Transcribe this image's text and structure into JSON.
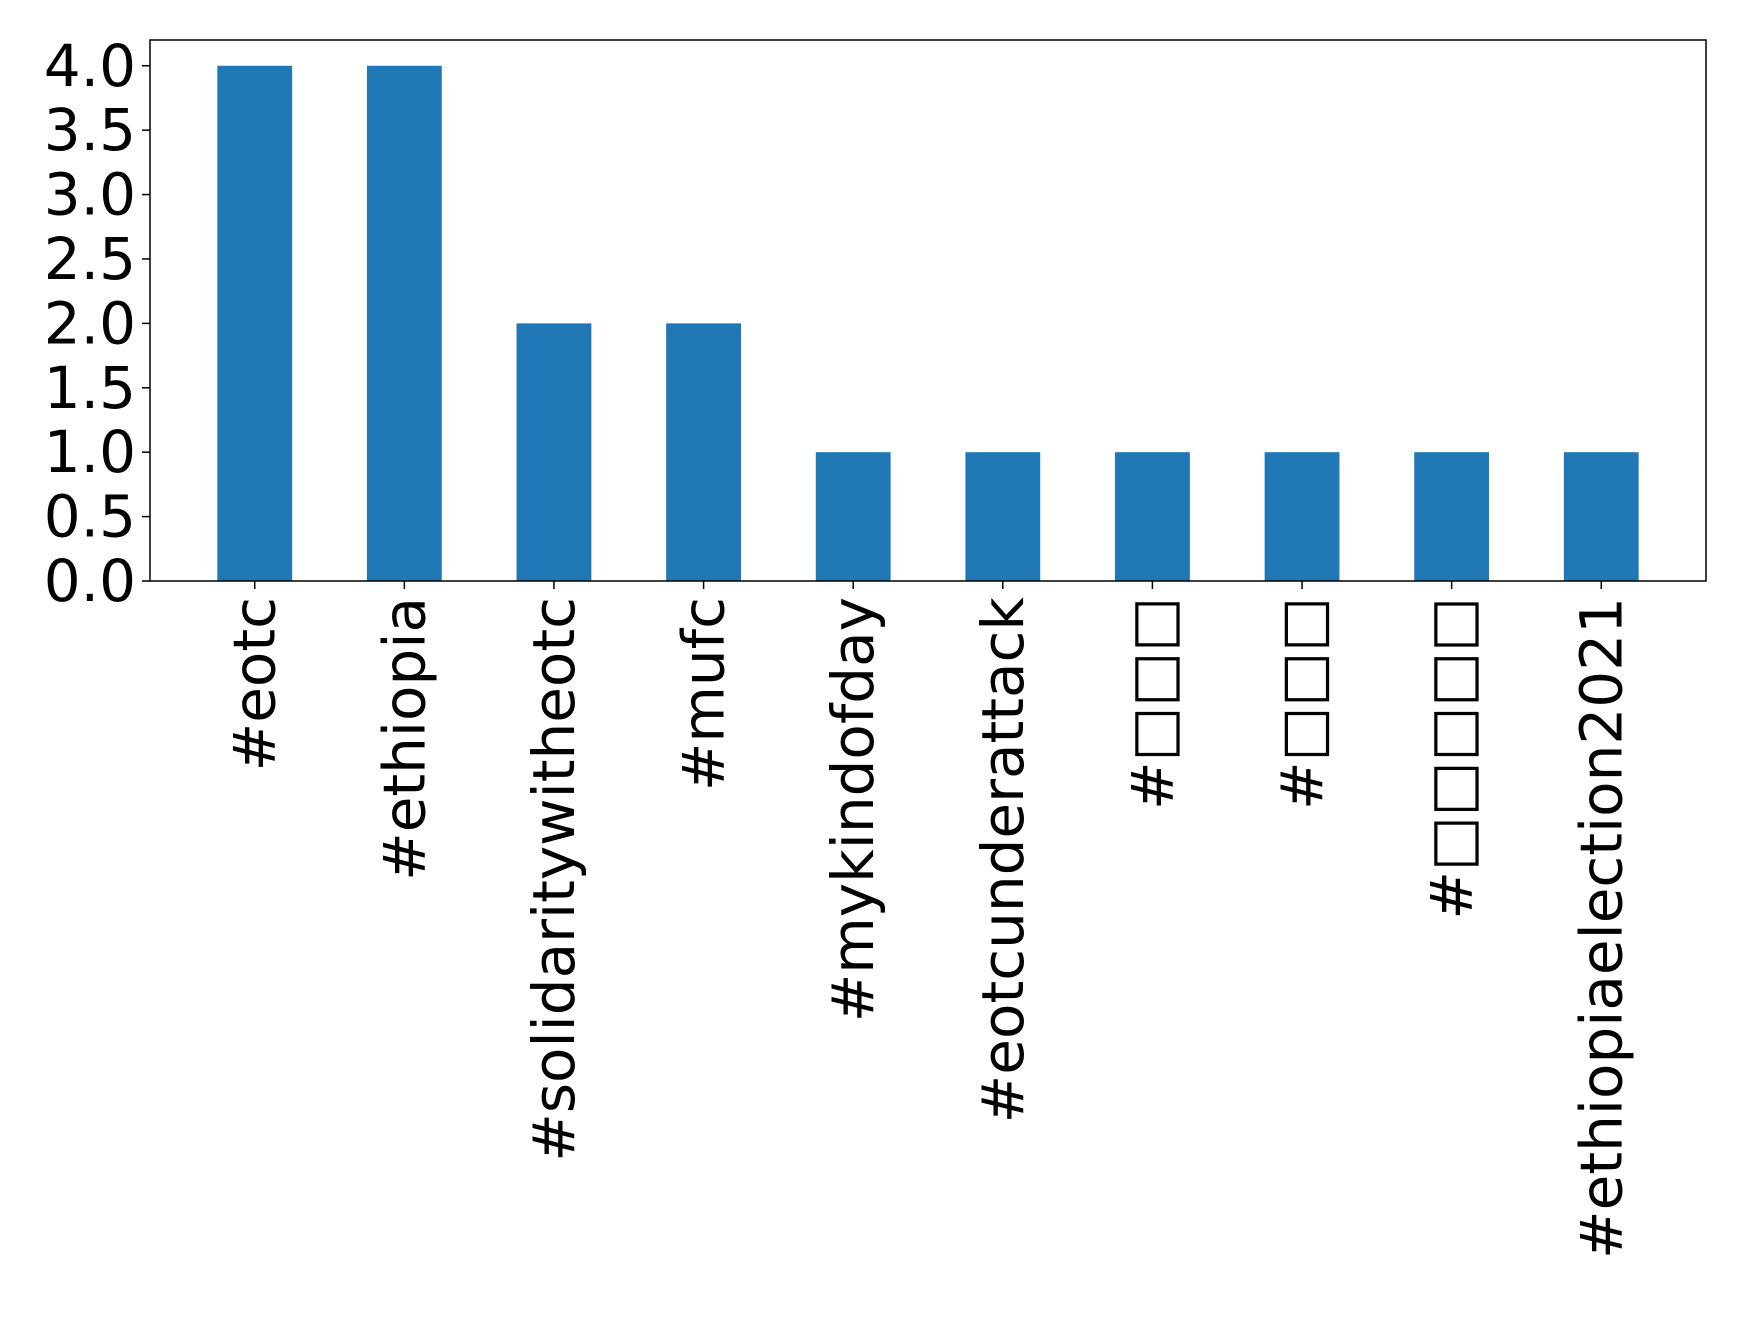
{
  "chart_data": {
    "type": "bar",
    "categories": [
      "#eotc",
      "#ethiopia",
      "#solidaritywitheotc",
      "#mufc",
      "#mykindofday",
      "#eotcunderattack",
      "#□□□",
      "#□□□",
      "#□□□□□",
      "#ethiopiaelection2021"
    ],
    "values": [
      4,
      4,
      2,
      2,
      1,
      1,
      1,
      1,
      1,
      1
    ],
    "ylim": [
      0,
      4.2
    ],
    "yticks": [
      0.0,
      0.5,
      1.0,
      1.5,
      2.0,
      2.5,
      3.0,
      3.5,
      4.0
    ],
    "ytick_labels": [
      "0.0",
      "0.5",
      "1.0",
      "1.5",
      "2.0",
      "2.5",
      "3.0",
      "3.5",
      "4.0"
    ],
    "grid": false,
    "legend": "none",
    "bar_color": "#1f77b4"
  }
}
